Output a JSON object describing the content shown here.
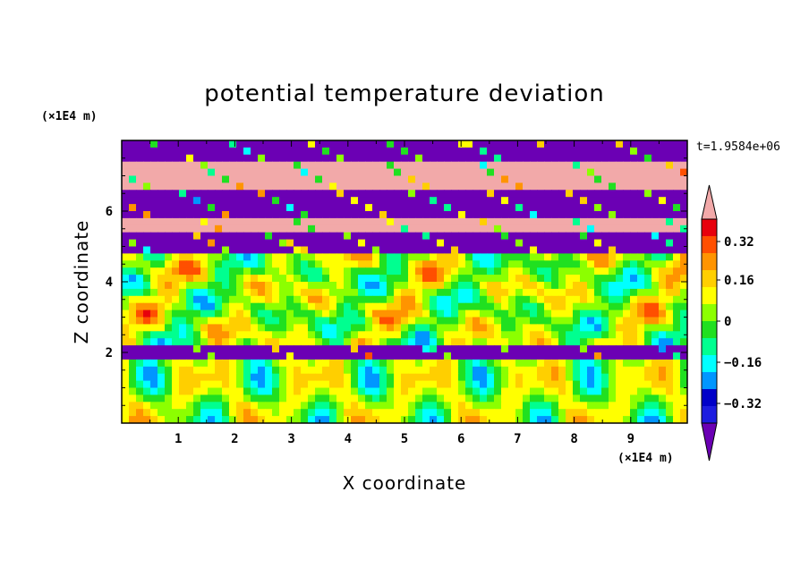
{
  "chart_data": {
    "type": "heatmap",
    "title": "potential temperature deviation",
    "xlabel": "X coordinate",
    "ylabel": "Z coordinate",
    "x_unit": "(×1E4 m)",
    "y_unit": "(×1E4 m)",
    "time_label": "t=1.9584e+06",
    "xlim": [
      0,
      10
    ],
    "ylim": [
      0,
      8
    ],
    "x_ticks": [
      "1",
      "2",
      "3",
      "4",
      "5",
      "6",
      "7",
      "8",
      "9"
    ],
    "y_ticks": [
      "2",
      "4",
      "6"
    ],
    "colorbar": {
      "levels": [
        -0.4,
        -0.32,
        -0.24,
        -0.16,
        -0.08,
        0,
        0.08,
        0.16,
        0.24,
        0.32,
        0.4
      ],
      "tick_labels": [
        "0.32",
        "0.16",
        "0",
        "−0.16",
        "−0.32"
      ],
      "colors": [
        "#e7000c",
        "#ff4f00",
        "#ff9400",
        "#ffcf00",
        "#ffff00",
        "#8cff00",
        "#20e020",
        "#00ff90",
        "#00ffff",
        "#0096ff",
        "#0000c8",
        "#1c1ce0",
        "#7a00c8"
      ],
      "over_color": "#f2a9a9",
      "under_color": "#6b00b4"
    },
    "bands": [
      {
        "z_range": [
          7.35,
          8.0
        ],
        "level": "under"
      },
      {
        "z_range": [
          6.7,
          7.35
        ],
        "level": "over"
      },
      {
        "z_range": [
          5.9,
          6.7
        ],
        "level": "under"
      },
      {
        "z_range": [
          5.4,
          5.9
        ],
        "level": "over"
      },
      {
        "z_range": [
          4.9,
          5.4
        ],
        "level": "under"
      },
      {
        "z_range": [
          4.4,
          4.9
        ],
        "level": "mixed"
      },
      {
        "z_range": [
          3.9,
          4.4
        ],
        "level": "mixed"
      },
      {
        "z_range": [
          3.0,
          3.9
        ],
        "level": "mixed"
      },
      {
        "z_range": [
          2.2,
          3.0
        ],
        "level": "mixed"
      },
      {
        "z_range": [
          1.8,
          2.2
        ],
        "level": "under"
      },
      {
        "z_range": [
          0.0,
          1.8
        ],
        "level": "mixed"
      }
    ]
  }
}
